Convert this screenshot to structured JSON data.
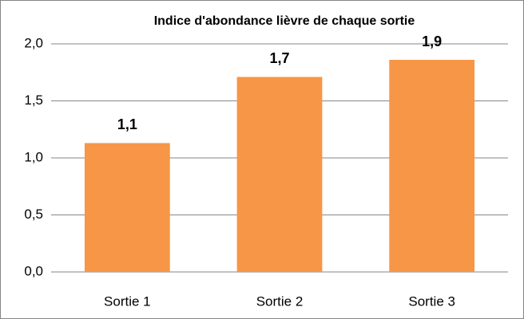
{
  "chart_data": {
    "type": "bar",
    "title": "Indice d'abondance lièvre de chaque sortie",
    "categories": [
      "Sortie 1",
      "Sortie 2",
      "Sortie 3"
    ],
    "values": [
      1.13,
      1.71,
      1.86
    ],
    "value_labels": [
      "1,1",
      "1,7",
      "1,9"
    ],
    "color": "#f79646",
    "ylim": [
      0,
      2
    ],
    "yticks": [
      {
        "value": 0,
        "label": "0,0"
      },
      {
        "value": 0.5,
        "label": "0,5"
      },
      {
        "value": 1,
        "label": "1,0"
      },
      {
        "value": 1.5,
        "label": "1,5"
      },
      {
        "value": 2,
        "label": "2,0"
      }
    ],
    "grid": true
  }
}
